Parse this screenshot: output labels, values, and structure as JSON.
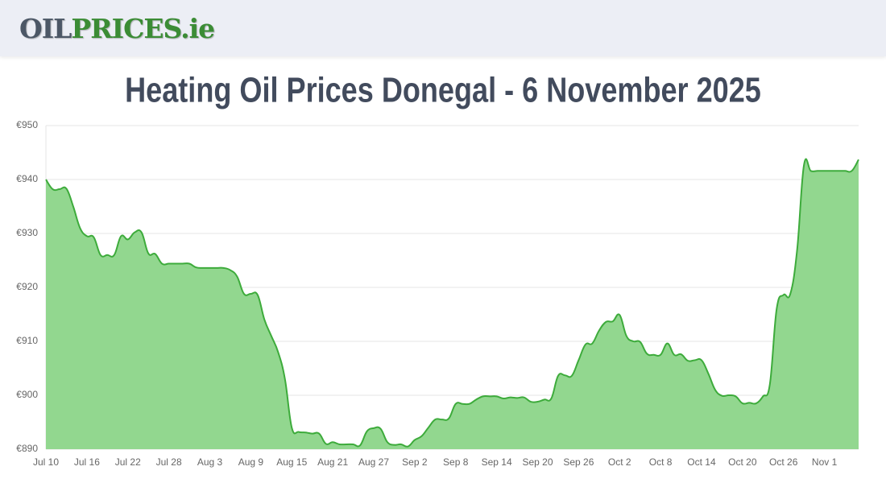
{
  "header": {
    "logo_parts": [
      "OIL",
      "PRICES.ie"
    ]
  },
  "chart_data": {
    "type": "area",
    "title": "Heating Oil Prices Donegal - 6 November 2025",
    "categories": [
      "Jul 10",
      null,
      null,
      null,
      null,
      null,
      "Jul 16",
      null,
      null,
      null,
      null,
      null,
      "Jul 22",
      null,
      null,
      null,
      null,
      null,
      "Jul 28",
      null,
      null,
      null,
      null,
      null,
      "Aug 3",
      null,
      null,
      null,
      null,
      null,
      "Aug 9",
      null,
      null,
      null,
      null,
      null,
      "Aug 15",
      null,
      null,
      null,
      null,
      null,
      "Aug 21",
      null,
      null,
      null,
      null,
      null,
      "Aug 27",
      null,
      null,
      null,
      null,
      null,
      "Sep 2",
      null,
      null,
      null,
      null,
      null,
      "Sep 8",
      null,
      null,
      null,
      null,
      null,
      "Sep 14",
      null,
      null,
      null,
      null,
      null,
      "Sep 20",
      null,
      null,
      null,
      null,
      null,
      "Sep 26",
      null,
      null,
      null,
      null,
      null,
      "Oct 2",
      null,
      null,
      null,
      null,
      null,
      "Oct 8",
      null,
      null,
      null,
      null,
      null,
      "Oct 14",
      null,
      null,
      null,
      null,
      null,
      "Oct 20",
      null,
      null,
      null,
      null,
      null,
      "Oct 26",
      null,
      null,
      null,
      null,
      null,
      "Nov 1",
      null,
      null,
      null,
      null,
      null
    ],
    "values": [
      940,
      938.2,
      938.2,
      938.3,
      935,
      931,
      929.5,
      929.3,
      926,
      926,
      926,
      929.5,
      928.9,
      930.2,
      930.2,
      926.3,
      926.2,
      924.4,
      924.4,
      924.4,
      924.4,
      924.4,
      923.7,
      923.6,
      923.6,
      923.6,
      923.6,
      923.2,
      922,
      918.8,
      918.8,
      918.6,
      914,
      911,
      908,
      903,
      894,
      893.2,
      893.1,
      892.9,
      892.9,
      891,
      891.3,
      890.9,
      890.9,
      890.9,
      890.7,
      893.3,
      893.9,
      893.8,
      891.3,
      890.8,
      890.9,
      890.5,
      891.7,
      892.4,
      894,
      895.5,
      895.5,
      895.7,
      898.4,
      898.4,
      898.4,
      899.2,
      899.8,
      899.8,
      899.8,
      899.4,
      899.6,
      899.5,
      899.6,
      898.8,
      898.8,
      899.2,
      899.4,
      903.6,
      903.7,
      903.6,
      906.5,
      909.4,
      909.6,
      912,
      913.6,
      913.7,
      914.9,
      911,
      910,
      909.9,
      907.7,
      907.5,
      907.5,
      909.6,
      907.5,
      907.6,
      906.4,
      906.5,
      906.5,
      904,
      901,
      899.9,
      900,
      899.8,
      898.5,
      898.6,
      898.5,
      899.8,
      902,
      916,
      918.6,
      918.8,
      927,
      942.7,
      941.6,
      941.6,
      941.6,
      941.6,
      941.6,
      941.6,
      941.6,
      943.7
    ],
    "color": "#3dab3b",
    "fill_color": "#92d78f",
    "ylim": [
      890,
      950
    ],
    "yticks": [
      {
        "value": 890,
        "label": "€890"
      },
      {
        "value": 900,
        "label": "€900"
      },
      {
        "value": 910,
        "label": "€910"
      },
      {
        "value": 920,
        "label": "€920"
      },
      {
        "value": 930,
        "label": "€930"
      },
      {
        "value": 940,
        "label": "€940"
      },
      {
        "value": 950,
        "label": "€950"
      }
    ],
    "grid": true
  }
}
